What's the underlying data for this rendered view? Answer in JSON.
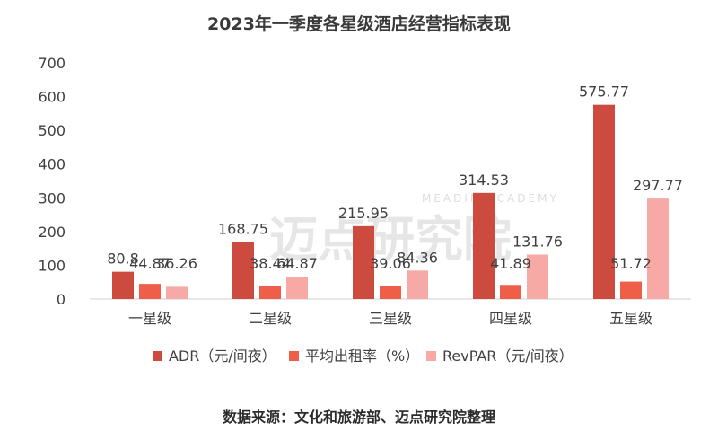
{
  "chart_data": {
    "type": "bar",
    "title": "2023年一季度各星级酒店经营指标表现",
    "categories": [
      "一星级",
      "二星级",
      "三星级",
      "四星级",
      "五星级"
    ],
    "series": [
      {
        "name": "ADR（元/间夜）",
        "color": "#cd4a3e",
        "values": [
          80.8,
          168.75,
          215.95,
          314.53,
          575.77
        ]
      },
      {
        "name": "平均出租率（%）",
        "color": "#ee5e48",
        "values": [
          44.87,
          38.44,
          39.06,
          41.89,
          51.72
        ]
      },
      {
        "name": "RevPAR（元/间夜）",
        "color": "#f7aaa5",
        "values": [
          36.26,
          64.87,
          84.36,
          131.76,
          297.77
        ]
      }
    ],
    "ylim": [
      0,
      700
    ],
    "yticks": [
      0,
      100,
      200,
      300,
      400,
      500,
      600,
      700
    ],
    "grid": false,
    "legend": "bottom",
    "xlabel": "",
    "ylabel": ""
  },
  "source": "数据来源：文化和旅游部、迈点研究院整理",
  "watermark": {
    "name": "迈点研究院",
    "sub": "MEADIN ACADEMY"
  }
}
